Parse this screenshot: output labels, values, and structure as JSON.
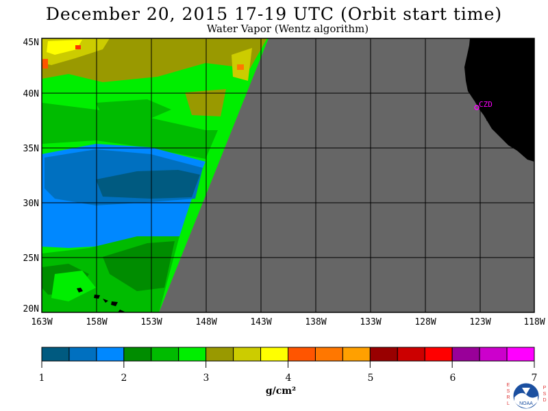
{
  "title": "December 20, 2015  17-19 UTC  (Orbit start time)",
  "subtitle": "Water Vapor (Wentz algorithm)",
  "station_label": "CZD",
  "lat_labels": [
    "45N",
    "40N",
    "35N",
    "30N",
    "25N",
    "20N"
  ],
  "lon_labels": [
    "163W",
    "158W",
    "153W",
    "148W",
    "143W",
    "138W",
    "133W",
    "128W",
    "123W",
    "118W"
  ],
  "colorbar": {
    "tick_labels": [
      "1",
      "2",
      "3",
      "4",
      "5",
      "6",
      "7"
    ],
    "units": "g/cm²",
    "colors": [
      "#005a80",
      "#0070c0",
      "#0088ff",
      "#008c00",
      "#00bb00",
      "#00ee00",
      "#999900",
      "#cccc00",
      "#ffff00",
      "#ff5500",
      "#ff7700",
      "#ffa000",
      "#990000",
      "#cc0000",
      "#ff0000",
      "#990099",
      "#cc00cc",
      "#ff00ff"
    ]
  },
  "map_colors": {
    "no_data": "#666666",
    "land": "#000000",
    "grid": "#000000",
    "station": "#ff00ff"
  },
  "logo": {
    "text": "NOAA",
    "left_letters": [
      "E",
      "S",
      "R",
      "L"
    ],
    "right_letters": [
      "P",
      "S",
      "D"
    ]
  }
}
